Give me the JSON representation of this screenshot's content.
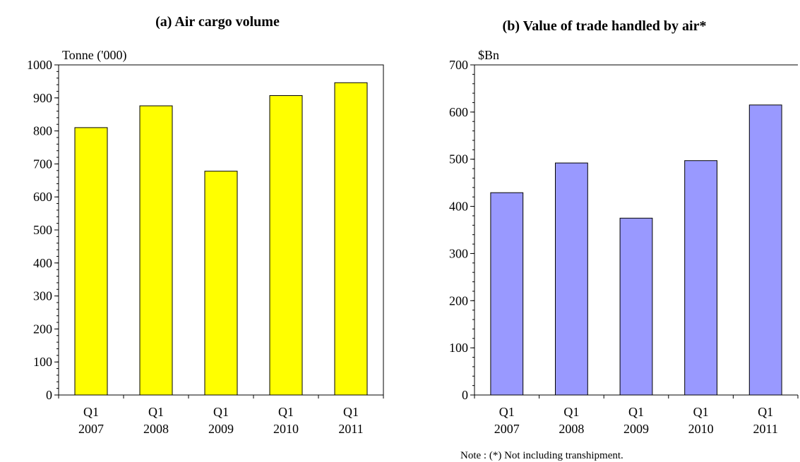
{
  "chart_data": [
    {
      "type": "bar",
      "title": "(a) Air cargo volume",
      "ylabel": "Tonne ('000)",
      "xlabel": "",
      "categories": [
        [
          "Q1",
          "2007"
        ],
        [
          "Q1",
          "2008"
        ],
        [
          "Q1",
          "2009"
        ],
        [
          "Q1",
          "2010"
        ],
        [
          "Q1",
          "2011"
        ]
      ],
      "values": [
        810,
        876,
        678,
        907,
        946
      ],
      "ylim": [
        0,
        1000
      ],
      "yticks": [
        0,
        100,
        200,
        300,
        400,
        500,
        600,
        700,
        800,
        900,
        1000
      ],
      "bar_color": "#ffff00",
      "grid": false
    },
    {
      "type": "bar",
      "title": "(b) Value of trade handled by air*",
      "ylabel": "$Bn",
      "xlabel": "",
      "categories": [
        [
          "Q1",
          "2007"
        ],
        [
          "Q1",
          "2008"
        ],
        [
          "Q1",
          "2009"
        ],
        [
          "Q1",
          "2010"
        ],
        [
          "Q1",
          "2011"
        ]
      ],
      "values": [
        429,
        492,
        375,
        497,
        615
      ],
      "ylim": [
        0,
        700
      ],
      "yticks": [
        0,
        100,
        200,
        300,
        400,
        500,
        600,
        700
      ],
      "bar_color": "#9999ff",
      "grid": false
    }
  ],
  "note": "Note : (*) Not including transhipment."
}
